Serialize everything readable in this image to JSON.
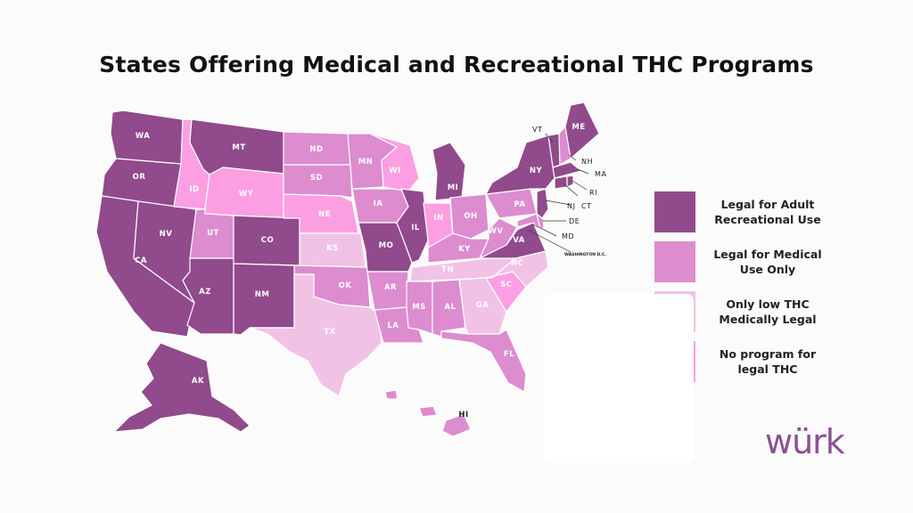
{
  "title": "States Offering Medical and Recreational THC Programs",
  "brand": "würk",
  "colors": {
    "recreational": "#914a8c",
    "medical": "#dc8ccf",
    "low_thc": "#f2c2e6",
    "none": "#fb9fe2"
  },
  "legend": [
    {
      "key": "recreational",
      "label": "Legal for Adult Recreational Use"
    },
    {
      "key": "medical",
      "label": "Legal for Medical Use Only"
    },
    {
      "key": "low_thc",
      "label": "Only low THC Medically Legal"
    },
    {
      "key": "none",
      "label": "No program for legal THC"
    }
  ],
  "states": {
    "WA": "recreational",
    "OR": "recreational",
    "CA": "recreational",
    "NV": "recreational",
    "ID": "none",
    "MT": "recreational",
    "WY": "none",
    "UT": "medical",
    "AZ": "recreational",
    "CO": "recreational",
    "NM": "recreational",
    "ND": "medical",
    "SD": "medical",
    "NE": "none",
    "KS": "low_thc",
    "OK": "medical",
    "TX": "low_thc",
    "MN": "medical",
    "IA": "medical",
    "MO": "recreational",
    "AR": "medical",
    "LA": "medical",
    "WI": "none",
    "IL": "recreational",
    "MI": "recreational",
    "IN": "none",
    "OH": "medical",
    "KY": "medical",
    "TN": "low_thc",
    "MS": "medical",
    "AL": "medical",
    "GA": "low_thc",
    "FL": "medical",
    "SC": "none",
    "NC": "low_thc",
    "VA": "recreational",
    "WV": "medical",
    "PA": "medical",
    "NY": "recreational",
    "VT": "recreational",
    "NH": "medical",
    "ME": "recreational",
    "MA": "recreational",
    "RI": "recreational",
    "CT": "recreational",
    "NJ": "recreational",
    "DE": "medical",
    "MD": "medical",
    "AK": "recreational",
    "HI": "medical"
  },
  "outside_labels": {
    "VT": "VT",
    "NH": "NH",
    "MA": "MA",
    "RI": "RI",
    "CT": "CT",
    "NJ": "NJ",
    "DE": "DE",
    "MD": "MD",
    "DC": "WASHINGTON D.C."
  }
}
